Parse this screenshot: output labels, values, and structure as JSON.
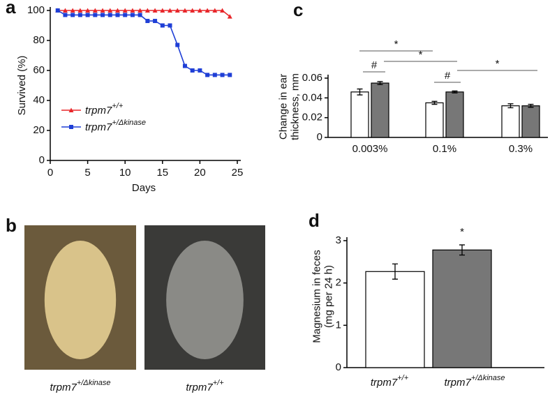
{
  "chart_data": [
    {
      "type": "line",
      "panel": "a",
      "xlabel": "Days",
      "ylabel": "Survived (%)",
      "x": [
        1,
        2,
        3,
        4,
        5,
        6,
        7,
        8,
        9,
        10,
        11,
        12,
        13,
        14,
        15,
        16,
        17,
        18,
        19,
        20,
        21,
        22,
        23,
        24
      ],
      "series": [
        {
          "name": "trpm7",
          "superscript": "+/+",
          "color": "#e8262a",
          "marker": "triangle",
          "values": [
            100,
            100,
            100,
            100,
            100,
            100,
            100,
            100,
            100,
            100,
            100,
            100,
            100,
            100,
            100,
            100,
            100,
            100,
            100,
            100,
            100,
            100,
            100,
            96
          ]
        },
        {
          "name": "trpm7",
          "superscript": "+/Δkinase",
          "color": "#1f3fd6",
          "marker": "square",
          "values": [
            100,
            97,
            97,
            97,
            97,
            97,
            97,
            97,
            97,
            97,
            97,
            97,
            93,
            93,
            90,
            90,
            77,
            63,
            60,
            60,
            57,
            57,
            57,
            57
          ]
        }
      ],
      "xlim": [
        0,
        25
      ],
      "xticks": [
        0,
        5,
        10,
        15,
        20,
        25
      ],
      "ylim": [
        0,
        100
      ],
      "yticks": [
        0,
        20,
        40,
        60,
        80,
        100
      ]
    },
    {
      "type": "image",
      "panel": "b",
      "captions": [
        {
          "name": "trpm7",
          "superscript": "+/Δkinase"
        },
        {
          "name": "trpm7",
          "superscript": "+/+"
        }
      ]
    },
    {
      "type": "grouped_bar",
      "panel": "c",
      "ylabel": [
        "Change in ear",
        "thickness, mm"
      ],
      "categories": [
        "0.003%",
        "0.1%",
        "0.3%"
      ],
      "series": [
        {
          "color": "#ffffff",
          "values": [
            0.046,
            0.035,
            0.032
          ],
          "errors": [
            0.003,
            0.0015,
            0.002
          ]
        },
        {
          "color": "#777777",
          "values": [
            0.055,
            0.046,
            0.032
          ],
          "errors": [
            0.0015,
            0.001,
            0.0015
          ]
        }
      ],
      "ylim": [
        0,
        0.06
      ],
      "yticks": [
        0,
        0.02,
        0.04,
        0.06
      ],
      "annotations": [
        "*",
        "*",
        "*",
        "#",
        "#"
      ]
    },
    {
      "type": "bar",
      "panel": "d",
      "ylabel": [
        "Magnesium in feces",
        "(mg per 24 h)"
      ],
      "categories": [
        {
          "name": "trpm7",
          "superscript": "+/+"
        },
        {
          "name": "trpm7",
          "superscript": "+/Δkinase"
        }
      ],
      "values": [
        2.27,
        2.78
      ],
      "errors": [
        0.18,
        0.12
      ],
      "colors": [
        "#ffffff",
        "#777777"
      ],
      "ylim": [
        0,
        3
      ],
      "yticks": [
        0,
        1,
        2,
        3
      ],
      "annotations": [
        "*"
      ]
    }
  ]
}
